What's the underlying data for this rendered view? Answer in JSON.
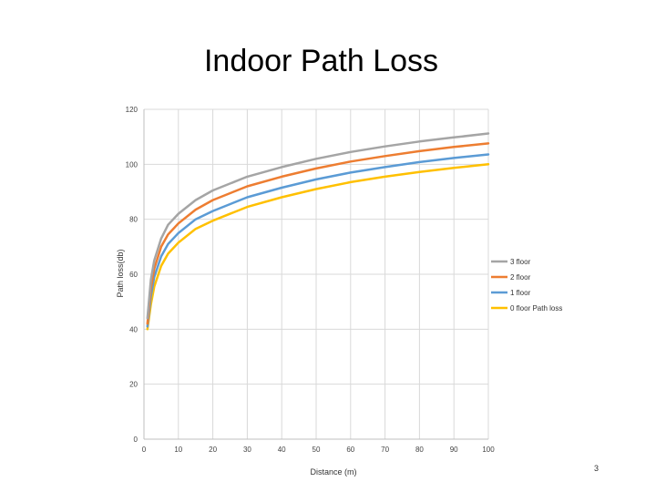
{
  "slide": {
    "title": "Indoor Path Loss",
    "page_number": "3"
  },
  "chart_data": {
    "type": "line",
    "title": "Indoor Path Loss",
    "xlabel": "Distance (m)",
    "ylabel": "Path loss(db)",
    "xlim": [
      0,
      100
    ],
    "ylim": [
      0,
      120
    ],
    "x_ticks": [
      0,
      10,
      20,
      30,
      40,
      50,
      60,
      70,
      80,
      90,
      100
    ],
    "x_tick_labels": [
      "0",
      "10",
      "20",
      "30",
      "40",
      "50",
      "60",
      "70",
      "80",
      "90",
      "100"
    ],
    "y_ticks": [
      0,
      20,
      40,
      60,
      80,
      100,
      120
    ],
    "y_tick_labels": [
      "0",
      "20",
      "40",
      "60",
      "80",
      "100",
      "120"
    ],
    "grid": true,
    "legend_position": "right",
    "x": [
      1,
      2,
      3,
      5,
      7,
      10,
      15,
      20,
      30,
      40,
      50,
      60,
      70,
      80,
      90,
      100
    ],
    "series": [
      {
        "name": "3 floor",
        "color": "#a5a5a5",
        "values": [
          44,
          58,
          65,
          73,
          78,
          82,
          87,
          90.5,
          95.5,
          99,
          102,
          104.5,
          106.5,
          108.3,
          109.8,
          111.2
        ]
      },
      {
        "name": "2 floor",
        "color": "#ed7d31",
        "values": [
          42,
          55,
          62,
          70,
          74.5,
          78.5,
          83.5,
          87,
          92,
          95.5,
          98.5,
          101,
          103,
          104.8,
          106.3,
          107.6
        ]
      },
      {
        "name": "1 floor",
        "color": "#5b9bd5",
        "values": [
          41,
          52,
          59,
          66.5,
          71,
          75,
          80,
          83,
          88,
          91.5,
          94.5,
          97,
          99,
          100.8,
          102.3,
          103.6
        ]
      },
      {
        "name": "0 floor Path loss",
        "color": "#ffc000",
        "values": [
          40,
          49,
          55.5,
          63,
          67.5,
          71.5,
          76.5,
          79.5,
          84.5,
          88,
          91,
          93.5,
          95.5,
          97.2,
          98.7,
          100
        ]
      }
    ]
  }
}
